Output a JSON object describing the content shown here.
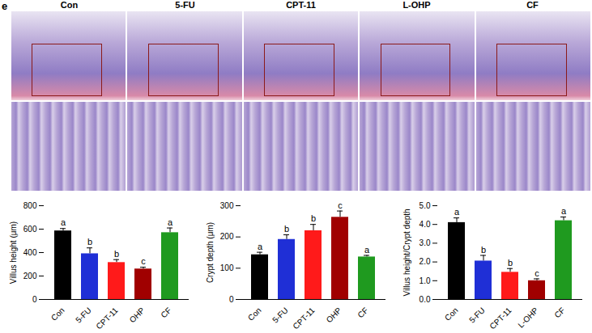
{
  "panel_label": "e",
  "image_titles": [
    "Con",
    "5-FU",
    "CPT-11",
    "L-OHP",
    "CF"
  ],
  "chart_data": [
    {
      "type": "bar",
      "y_label": "Villus height (μm)",
      "categories": [
        "Con",
        "5-FU",
        "CPT-11",
        "OHP",
        "CF"
      ],
      "values": [
        585,
        390,
        315,
        260,
        570
      ],
      "errors": [
        20,
        50,
        25,
        15,
        40
      ],
      "annotations": [
        "a",
        "b",
        "b",
        "c",
        "a"
      ],
      "colors": [
        "#000000",
        "#1f2fd6",
        "#ff1a1a",
        "#a00000",
        "#1f9a1f"
      ],
      "ylim": [
        0,
        800
      ],
      "yticks": [
        0,
        200,
        400,
        600,
        800
      ]
    },
    {
      "type": "bar",
      "y_label": "Crypt depth (μm)",
      "categories": [
        "Con",
        "5-FU",
        "CPT-11",
        "OHP",
        "CF"
      ],
      "values": [
        143,
        192,
        220,
        263,
        136
      ],
      "errors": [
        8,
        15,
        20,
        20,
        5
      ],
      "annotations": [
        "a",
        "b",
        "b",
        "c",
        "a"
      ],
      "colors": [
        "#000000",
        "#1f2fd6",
        "#ff1a1a",
        "#a00000",
        "#1f9a1f"
      ],
      "ylim": [
        0,
        300
      ],
      "yticks": [
        0,
        100,
        200,
        300
      ]
    },
    {
      "type": "bar",
      "y_label": "Villus height/Crypt depth",
      "categories": [
        "Con",
        "5-FU",
        "CPT-11",
        "L-OHP",
        "CF"
      ],
      "values": [
        4.1,
        2.05,
        1.45,
        1.0,
        4.2
      ],
      "errors": [
        0.25,
        0.3,
        0.2,
        0.1,
        0.2
      ],
      "annotations": [
        "a",
        "b",
        "b",
        "c",
        "a"
      ],
      "colors": [
        "#000000",
        "#1f2fd6",
        "#ff1a1a",
        "#a00000",
        "#1f9a1f"
      ],
      "ylim": [
        0,
        5
      ],
      "yticks": [
        0,
        1,
        2,
        3,
        4,
        5
      ]
    }
  ]
}
